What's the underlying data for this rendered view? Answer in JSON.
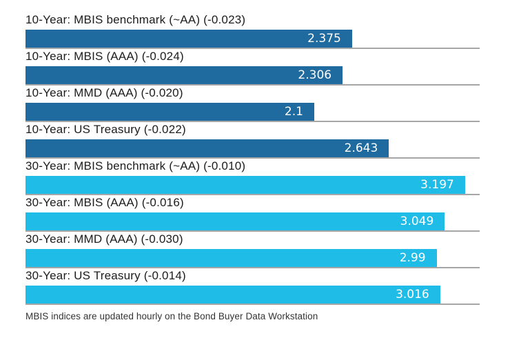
{
  "chart_data": {
    "type": "bar",
    "orientation": "horizontal",
    "title": "",
    "xlabel": "",
    "ylabel": "",
    "xlim": [
      0,
      3.303
    ],
    "grid": false,
    "legend": false,
    "bar_colors": {
      "10-Year": "#1f6a9e",
      "30-Year": "#20bce8"
    },
    "baseline_color": "#a6a6a6",
    "value_label_color": "#ffffff",
    "rows": [
      {
        "label": "10-Year: MBIS benchmark (~AA) (-0.023)",
        "value": 2.375,
        "value_label": "2.375",
        "group": "10-Year"
      },
      {
        "label": "10-Year: MBIS (AAA) (-0.024)",
        "value": 2.306,
        "value_label": "2.306",
        "group": "10-Year"
      },
      {
        "label": "10-Year: MMD (AAA) (-0.020)",
        "value": 2.1,
        "value_label": "2.1",
        "group": "10-Year"
      },
      {
        "label": "10-Year: US Treasury (-0.022)",
        "value": 2.643,
        "value_label": "2.643",
        "group": "10-Year"
      },
      {
        "label": "30-Year: MBIS benchmark (~AA) (-0.010)",
        "value": 3.197,
        "value_label": "3.197",
        "group": "30-Year"
      },
      {
        "label": "30-Year: MBIS (AAA) (-0.016)",
        "value": 3.049,
        "value_label": "3.049",
        "group": "30-Year"
      },
      {
        "label": "30-Year: MMD (AAA) (-0.030)",
        "value": 2.99,
        "value_label": "2.99",
        "group": "30-Year"
      },
      {
        "label": "30-Year: US Treasury (-0.014)",
        "value": 3.016,
        "value_label": "3.016",
        "group": "30-Year"
      }
    ],
    "footnote": "MBIS indices are updated hourly on the Bond Buyer Data Workstation"
  }
}
